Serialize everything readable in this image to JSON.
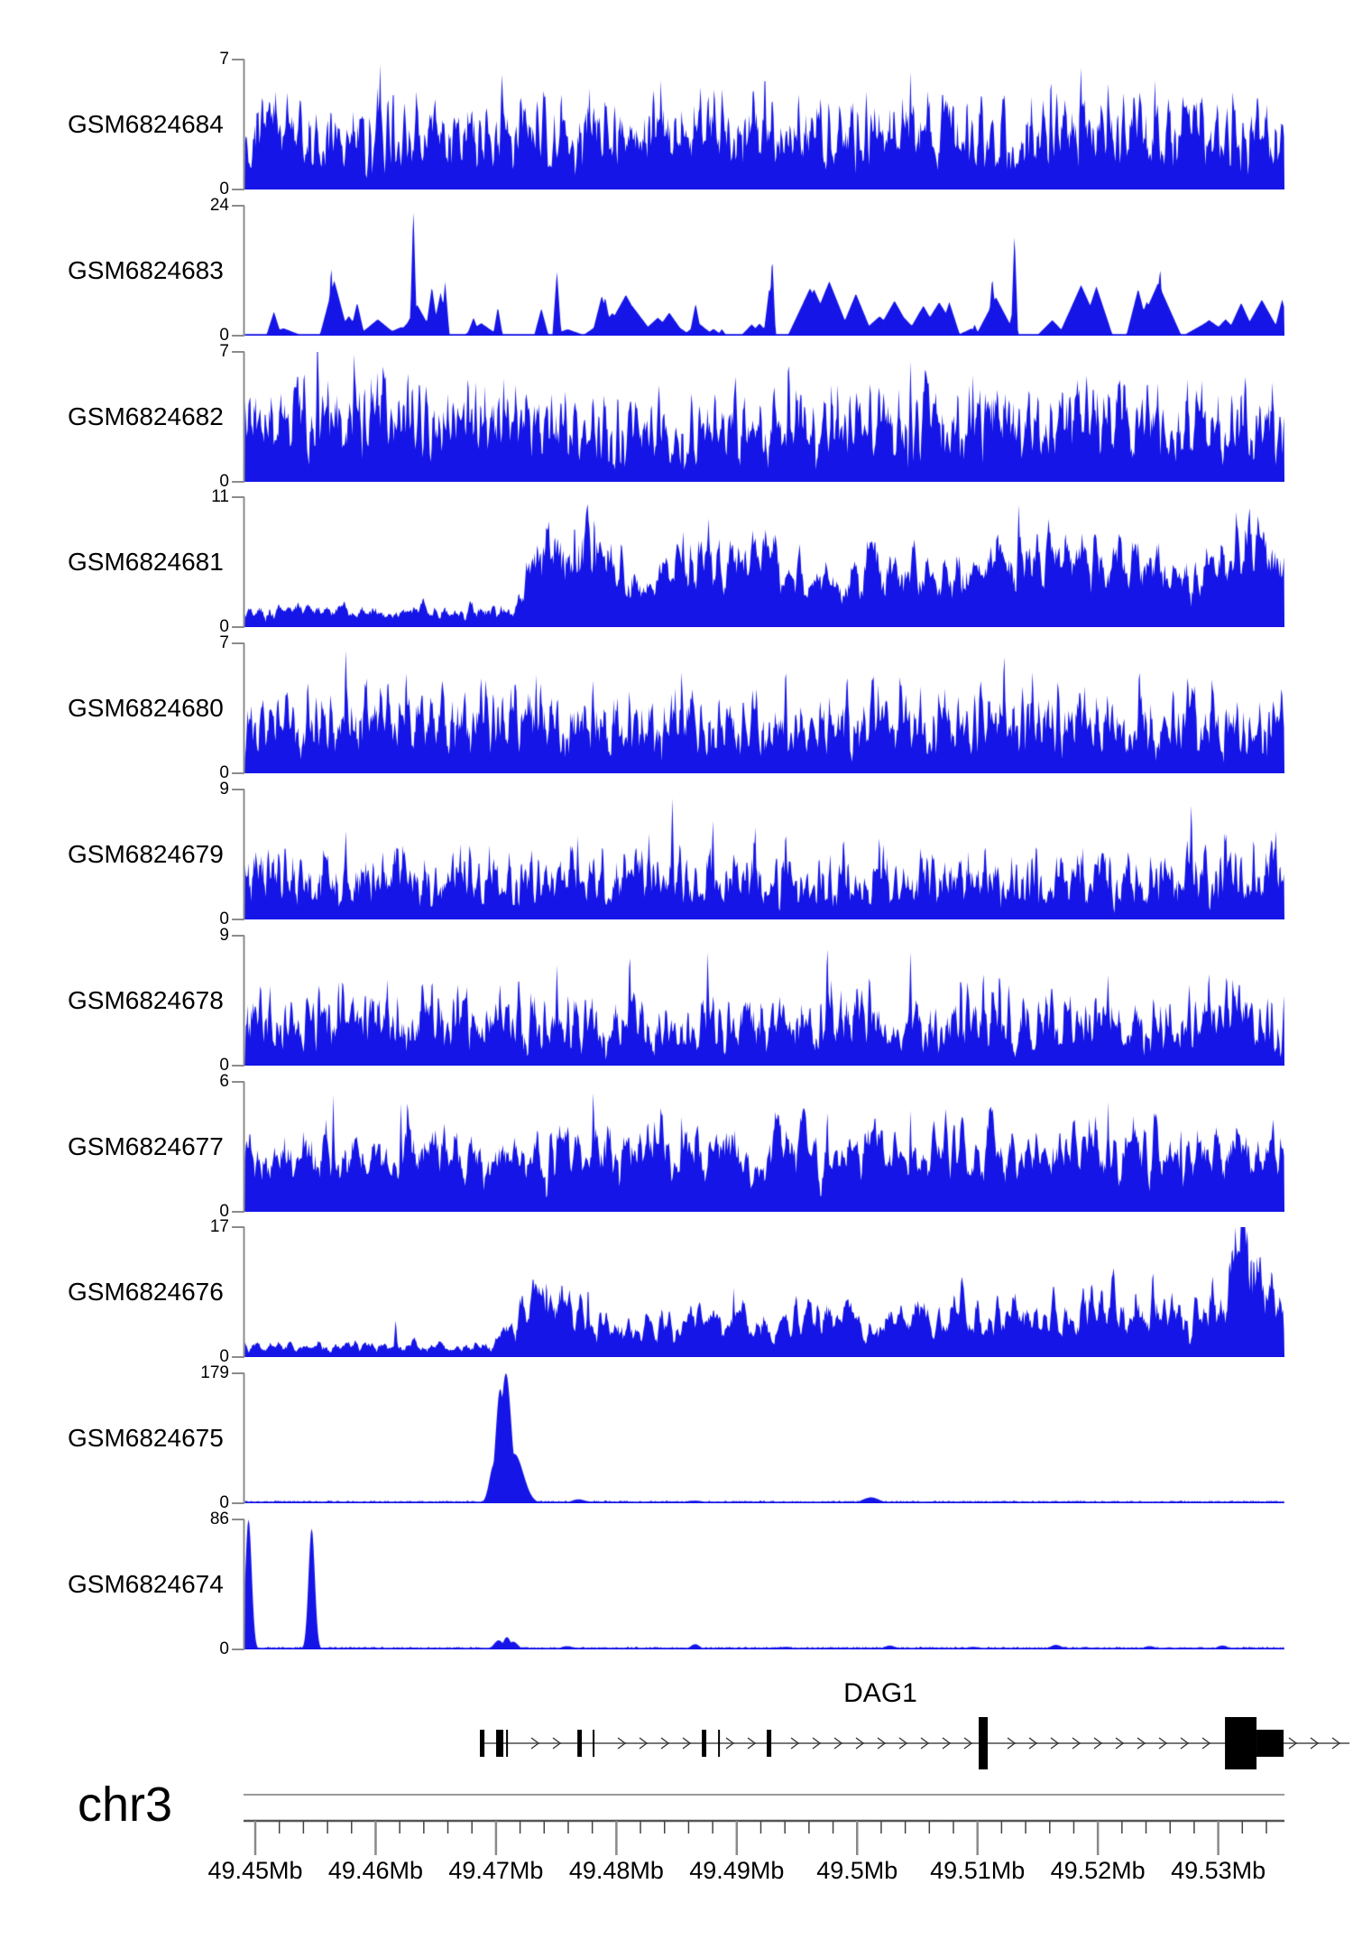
{
  "figure": {
    "background": "#ffffff"
  },
  "colors": {
    "signal": "#1515e8",
    "bracket": "#8c8c8c",
    "axis_top_line": "#9a9a9a",
    "axis_line": "#555555",
    "minor_tick": "#444444",
    "major_tick": "#8a8a8a",
    "gene_line": "#777777",
    "exon": "#000000",
    "text": "#000000"
  },
  "chart_data": {
    "type": "area",
    "title": "",
    "legend": null,
    "grid": false,
    "region": {
      "chrom": "chr3",
      "start_mb": 49.4491,
      "end_mb": 49.5355,
      "unit": "Mb"
    },
    "xaxis": {
      "minor_step_mb": 0.002,
      "ticks": [
        {
          "mb": 49.45,
          "label": "49.45Mb"
        },
        {
          "mb": 49.46,
          "label": "49.46Mb"
        },
        {
          "mb": 49.47,
          "label": "49.47Mb"
        },
        {
          "mb": 49.48,
          "label": "49.48Mb"
        },
        {
          "mb": 49.49,
          "label": "49.49Mb"
        },
        {
          "mb": 49.5,
          "label": "49.5Mb"
        },
        {
          "mb": 49.51,
          "label": "49.51Mb"
        },
        {
          "mb": 49.52,
          "label": "49.52Mb"
        },
        {
          "mb": 49.53,
          "label": "49.53Mb"
        }
      ]
    },
    "tracks": [
      {
        "label": "GSM6824684",
        "ymin": 0,
        "ymax": 7,
        "style": "dense",
        "seed": 101,
        "smooth": 1,
        "gap_prob": 0.03,
        "envelope": [
          [
            0,
            0.52
          ],
          [
            0.2,
            0.47
          ],
          [
            0.4,
            0.52
          ],
          [
            0.6,
            0.48
          ],
          [
            0.8,
            0.52
          ],
          [
            1,
            0.48
          ]
        ],
        "spikes": [
          [
            0.13,
            1,
            3
          ],
          [
            0.247,
            0.95,
            3
          ],
          [
            0.4,
            0.9,
            3
          ],
          [
            0.5,
            1,
            3
          ],
          [
            0.64,
            0.93,
            3
          ],
          [
            0.775,
            0.95,
            3
          ],
          [
            0.875,
            0.88,
            3
          ],
          [
            0.95,
            0.85,
            3
          ]
        ]
      },
      {
        "label": "GSM6824683",
        "ymin": 0,
        "ymax": 24,
        "style": "triangles",
        "seed": 202,
        "envelope": [
          [
            0,
            0.3
          ],
          [
            0.1,
            0.35
          ],
          [
            0.162,
            0.45
          ],
          [
            0.25,
            0.3
          ],
          [
            0.35,
            0.35
          ],
          [
            0.45,
            0.3
          ],
          [
            0.55,
            0.35
          ],
          [
            0.65,
            0.3
          ],
          [
            0.75,
            0.4
          ],
          [
            0.85,
            0.35
          ],
          [
            1,
            0.35
          ]
        ],
        "spikes": [
          [
            0.083,
            0.55,
            4
          ],
          [
            0.162,
            1.0,
            4
          ],
          [
            0.3,
            0.5,
            5
          ],
          [
            0.507,
            0.62,
            4
          ],
          [
            0.74,
            0.8,
            4
          ],
          [
            0.88,
            0.55,
            4
          ]
        ]
      },
      {
        "label": "GSM6824682",
        "ymin": 0,
        "ymax": 7,
        "style": "dense",
        "seed": 303,
        "smooth": 1,
        "gap_prob": 0.03,
        "envelope": [
          [
            0,
            0.5
          ],
          [
            0.15,
            0.55
          ],
          [
            0.3,
            0.45
          ],
          [
            0.5,
            0.5
          ],
          [
            0.7,
            0.52
          ],
          [
            0.85,
            0.55
          ],
          [
            1,
            0.5
          ]
        ],
        "spikes": [
          [
            0.08,
            0.85,
            3
          ],
          [
            0.105,
            1.0,
            3
          ],
          [
            0.57,
            0.8,
            3
          ],
          [
            0.64,
            0.95,
            3
          ],
          [
            0.7,
            0.85,
            3
          ],
          [
            0.84,
            0.9,
            3
          ],
          [
            0.92,
            0.85,
            3
          ]
        ]
      },
      {
        "label": "GSM6824681",
        "ymin": 0,
        "ymax": 11,
        "style": "dense",
        "seed": 404,
        "smooth": 2,
        "gap_prob": 0.05,
        "envelope": [
          [
            0,
            0.14
          ],
          [
            0.26,
            0.14
          ],
          [
            0.28,
            0.6
          ],
          [
            0.33,
            0.7
          ],
          [
            0.36,
            0.62
          ],
          [
            0.4,
            0.48
          ],
          [
            0.44,
            0.58
          ],
          [
            0.47,
            0.5
          ],
          [
            0.52,
            0.55
          ],
          [
            0.56,
            0.35
          ],
          [
            0.6,
            0.5
          ],
          [
            0.65,
            0.45
          ],
          [
            0.7,
            0.55
          ],
          [
            0.75,
            0.62
          ],
          [
            0.8,
            0.55
          ],
          [
            0.85,
            0.6
          ],
          [
            0.9,
            0.4
          ],
          [
            0.94,
            0.65
          ],
          [
            0.97,
            0.75
          ],
          [
            1,
            0.6
          ]
        ],
        "spikes": [
          [
            0.317,
            0.9,
            3
          ],
          [
            0.336,
            0.95,
            3
          ],
          [
            0.744,
            1.0,
            3
          ],
          [
            0.962,
            0.8,
            3
          ],
          [
            0.975,
            0.85,
            3
          ]
        ]
      },
      {
        "label": "GSM6824680",
        "ymin": 0,
        "ymax": 7,
        "style": "dense",
        "seed": 505,
        "smooth": 1,
        "gap_prob": 0.05,
        "envelope": [
          [
            0,
            0.42
          ],
          [
            0.2,
            0.46
          ],
          [
            0.4,
            0.42
          ],
          [
            0.6,
            0.46
          ],
          [
            0.8,
            0.44
          ],
          [
            1,
            0.46
          ]
        ],
        "spikes": [
          [
            0.097,
            1.0,
            3
          ],
          [
            0.155,
            0.85,
            3
          ],
          [
            0.28,
            0.8,
            3
          ],
          [
            0.42,
            0.85,
            3
          ],
          [
            0.52,
            0.9,
            3
          ],
          [
            0.63,
            0.85,
            3
          ],
          [
            0.73,
            1.0,
            3
          ],
          [
            0.86,
            0.9,
            3
          ],
          [
            0.93,
            0.8,
            3
          ]
        ]
      },
      {
        "label": "GSM6824679",
        "ymin": 0,
        "ymax": 9,
        "style": "dense",
        "seed": 606,
        "smooth": 1,
        "gap_prob": 0.06,
        "envelope": [
          [
            0,
            0.4
          ],
          [
            0.2,
            0.36
          ],
          [
            0.4,
            0.4
          ],
          [
            0.6,
            0.37
          ],
          [
            0.8,
            0.4
          ],
          [
            1,
            0.38
          ]
        ],
        "spikes": [
          [
            0.097,
            0.72,
            3
          ],
          [
            0.2,
            0.6,
            3
          ],
          [
            0.32,
            0.65,
            3
          ],
          [
            0.411,
            0.97,
            3
          ],
          [
            0.45,
            0.8,
            3
          ],
          [
            0.52,
            0.75,
            3
          ],
          [
            0.61,
            0.7,
            3
          ],
          [
            0.91,
            0.95,
            3
          ],
          [
            0.97,
            0.7,
            3
          ]
        ]
      },
      {
        "label": "GSM6824678",
        "ymin": 0,
        "ymax": 9,
        "style": "dense",
        "seed": 707,
        "smooth": 1,
        "gap_prob": 0.05,
        "envelope": [
          [
            0,
            0.4
          ],
          [
            0.2,
            0.42
          ],
          [
            0.4,
            0.38
          ],
          [
            0.6,
            0.42
          ],
          [
            0.8,
            0.4
          ],
          [
            1,
            0.42
          ]
        ],
        "spikes": [
          [
            0.09,
            0.7,
            3
          ],
          [
            0.18,
            0.75,
            3
          ],
          [
            0.3,
            0.8,
            3
          ],
          [
            0.37,
            0.95,
            3
          ],
          [
            0.445,
            0.9,
            3
          ],
          [
            0.56,
            1.0,
            3
          ],
          [
            0.64,
            0.9,
            3
          ],
          [
            0.71,
            0.8,
            3
          ],
          [
            0.83,
            0.7,
            3
          ],
          [
            0.95,
            0.75,
            3
          ]
        ]
      },
      {
        "label": "GSM6824677",
        "ymin": 0,
        "ymax": 6,
        "style": "dense",
        "seed": 808,
        "smooth": 2,
        "gap_prob": 0.03,
        "envelope": [
          [
            0,
            0.55
          ],
          [
            0.2,
            0.5
          ],
          [
            0.4,
            0.55
          ],
          [
            0.6,
            0.52
          ],
          [
            0.8,
            0.55
          ],
          [
            1,
            0.52
          ]
        ],
        "spikes": [
          [
            0.085,
            0.9,
            3
          ],
          [
            0.15,
            0.85,
            3
          ],
          [
            0.335,
            1.0,
            3
          ],
          [
            0.42,
            0.8,
            3
          ],
          [
            0.56,
            0.85,
            3
          ],
          [
            0.64,
            0.8,
            3
          ],
          [
            0.72,
            0.75,
            3
          ],
          [
            0.83,
            0.85,
            3
          ],
          [
            0.9,
            0.7,
            3
          ]
        ]
      },
      {
        "label": "GSM6824676",
        "ymin": 0,
        "ymax": 17,
        "style": "dense",
        "seed": 909,
        "smooth": 2,
        "gap_prob": 0.05,
        "envelope": [
          [
            0,
            0.09
          ],
          [
            0.24,
            0.1
          ],
          [
            0.26,
            0.38
          ],
          [
            0.3,
            0.45
          ],
          [
            0.34,
            0.3
          ],
          [
            0.4,
            0.28
          ],
          [
            0.45,
            0.33
          ],
          [
            0.5,
            0.3
          ],
          [
            0.55,
            0.35
          ],
          [
            0.6,
            0.28
          ],
          [
            0.65,
            0.33
          ],
          [
            0.7,
            0.38
          ],
          [
            0.74,
            0.42
          ],
          [
            0.78,
            0.38
          ],
          [
            0.83,
            0.45
          ],
          [
            0.87,
            0.42
          ],
          [
            0.9,
            0.35
          ],
          [
            0.94,
            0.5
          ],
          [
            0.96,
            0.9
          ],
          [
            0.98,
            0.6
          ],
          [
            1,
            0.45
          ]
        ],
        "spikes": [
          [
            0.145,
            0.3,
            3
          ],
          [
            0.29,
            0.65,
            3
          ],
          [
            0.33,
            0.6,
            3
          ],
          [
            0.47,
            0.55,
            3
          ],
          [
            0.873,
            0.75,
            3
          ],
          [
            0.955,
            0.85,
            3
          ],
          [
            0.9635,
            1.0,
            3
          ]
        ]
      },
      {
        "label": "GSM6824675",
        "ymin": 0,
        "ymax": 179,
        "style": "peaks",
        "seed": 1010,
        "baseline": 0.012,
        "peaks": [
          [
            0.2395,
            0.3,
            5
          ],
          [
            0.2455,
            0.88,
            5
          ],
          [
            0.251,
            1.0,
            6
          ],
          [
            0.259,
            0.38,
            10
          ],
          [
            0.321,
            0.03,
            8
          ],
          [
            0.432,
            0.02,
            10
          ],
          [
            0.602,
            0.045,
            9
          ],
          [
            0.8,
            0.015,
            10
          ]
        ]
      },
      {
        "label": "GSM6824674",
        "ymin": 0,
        "ymax": 86,
        "style": "peaks",
        "seed": 1111,
        "baseline": 0.012,
        "peaks": [
          [
            0.0035,
            1.0,
            3.5
          ],
          [
            0.0642,
            0.93,
            3.5
          ],
          [
            0.244,
            0.07,
            5
          ],
          [
            0.252,
            0.095,
            4
          ],
          [
            0.258,
            0.06,
            5
          ],
          [
            0.31,
            0.025,
            7
          ],
          [
            0.433,
            0.04,
            5
          ],
          [
            0.52,
            0.02,
            8
          ],
          [
            0.62,
            0.03,
            6
          ],
          [
            0.7,
            0.02,
            7
          ],
          [
            0.78,
            0.035,
            6
          ],
          [
            0.87,
            0.025,
            6
          ],
          [
            0.94,
            0.03,
            6
          ]
        ]
      }
    ],
    "gene_track": {
      "gene": "DAG1",
      "strand": "+",
      "line_start_mb": 49.46866,
      "line_end_mb": 49.54091,
      "exons": [
        {
          "s": 49.46866,
          "e": 49.46904,
          "tall": false
        },
        {
          "s": 49.47001,
          "e": 49.47061,
          "tall": false
        },
        {
          "s": 49.47084,
          "e": 49.47099,
          "tall": false
        },
        {
          "s": 49.47676,
          "e": 49.47713,
          "tall": false
        },
        {
          "s": 49.47803,
          "e": 49.47818,
          "tall": false
        },
        {
          "s": 49.4871,
          "e": 49.48747,
          "tall": false
        },
        {
          "s": 49.48845,
          "e": 49.4886,
          "tall": false
        },
        {
          "s": 49.49249,
          "e": 49.49287,
          "tall": false
        },
        {
          "s": 49.5101,
          "e": 49.51085,
          "tall": true
        },
        {
          "s": 49.53056,
          "e": 49.53318,
          "tall": true
        },
        {
          "s": 49.53318,
          "e": 49.53543,
          "tall": false
        }
      ]
    }
  }
}
